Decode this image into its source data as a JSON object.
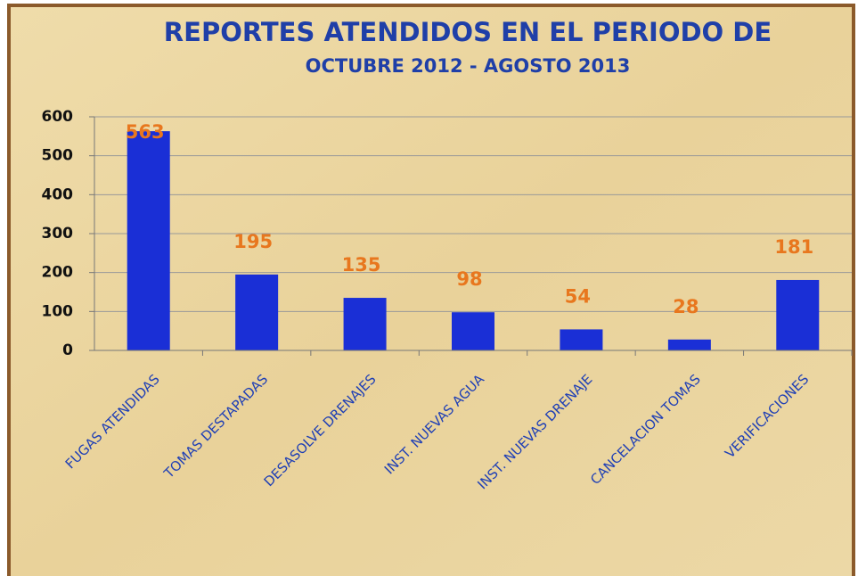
{
  "chart_data": {
    "type": "bar",
    "title": "REPORTES ATENDIDOS EN EL PERIODO DE",
    "subtitle": "OCTUBRE 2012 - AGOSTO 2013",
    "categories": [
      "FUGAS ATENDIDAS",
      "TOMAS DESTAPADAS",
      "DESASOLVE DRENAJES",
      "INST. NUEVAS AGUA",
      "INST. NUEVAS DRENAJE",
      "CANCELACION TOMAS",
      "VERIFICACIONES"
    ],
    "values": [
      563,
      195,
      135,
      98,
      54,
      28,
      181
    ],
    "color": "#1a2fd6",
    "ylim": [
      0,
      600
    ],
    "yticks": [
      0,
      100,
      200,
      300,
      400,
      500,
      600
    ],
    "grid": true
  }
}
